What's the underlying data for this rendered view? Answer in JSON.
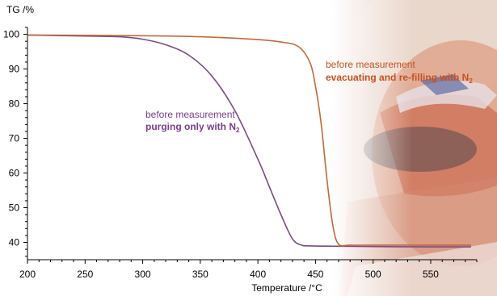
{
  "chart_data": {
    "type": "line",
    "ylabel": "TG /%",
    "xlabel": "Temperature /°C",
    "xlim": [
      200,
      590
    ],
    "ylim": [
      35,
      102
    ],
    "x_ticks": [
      200,
      250,
      300,
      350,
      400,
      450,
      500,
      550
    ],
    "y_ticks": [
      40,
      50,
      60,
      70,
      80,
      90,
      100
    ],
    "grid": false,
    "series": [
      {
        "name": "before measurement purging only with N2",
        "color": "#7a4a8c",
        "x": [
          200,
          250,
          280,
          300,
          320,
          340,
          360,
          380,
          400,
          410,
          420,
          430,
          438,
          445,
          460,
          500,
          550,
          585
        ],
        "y": [
          99.8,
          99.5,
          99.3,
          98.6,
          97.0,
          94.0,
          88.0,
          78.0,
          64.0,
          56.0,
          48.0,
          41.0,
          39.2,
          39.0,
          38.9,
          38.8,
          38.7,
          38.7
        ]
      },
      {
        "name": "before measurement evacuating and re-filling with N2",
        "color": "#c06a3a",
        "x": [
          200,
          300,
          350,
          400,
          420,
          435,
          445,
          450,
          455,
          460,
          465,
          470,
          480,
          500,
          550,
          585
        ],
        "y": [
          99.8,
          99.6,
          99.3,
          98.5,
          97.8,
          96.5,
          92.0,
          85.0,
          74.0,
          58.0,
          45.0,
          39.5,
          39.2,
          39.2,
          39.2,
          39.2
        ]
      }
    ],
    "annotations": [
      {
        "line1": "before measurement",
        "line2": "purging only with N",
        "sub": "2",
        "color": "#7a3d8c"
      },
      {
        "line1": "before measurement",
        "line2": "evacuating and re-filling with N",
        "sub": "2",
        "color": "#c8501e"
      }
    ]
  }
}
